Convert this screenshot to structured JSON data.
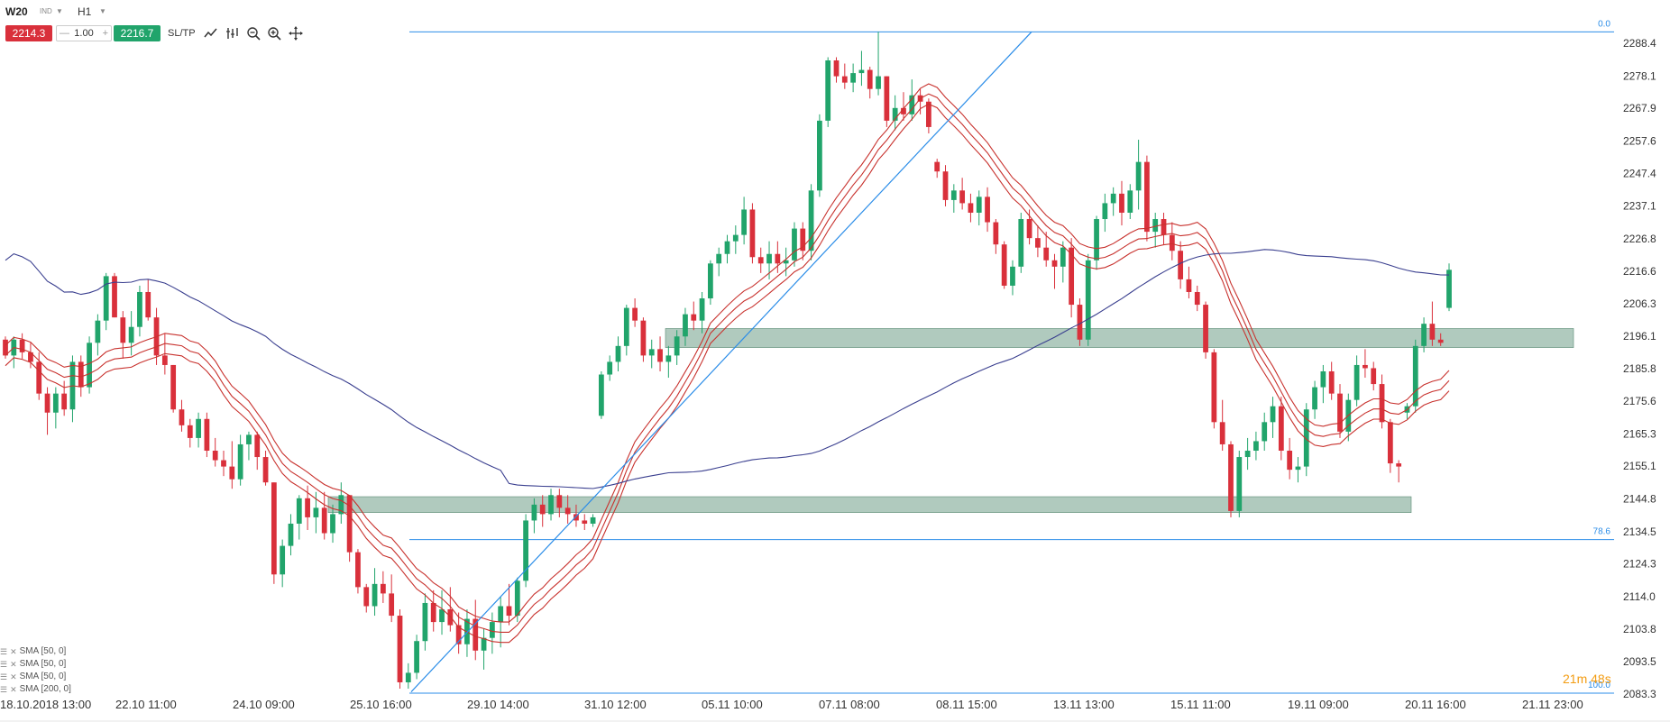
{
  "toolbar": {
    "symbol": "W20",
    "type": "IND",
    "timeframe": "H1",
    "sell_price": "2214.3",
    "quantity": "1.00",
    "buy_price": "2216.7",
    "sltp": "SL/TP",
    "icons": [
      "chart-type-icon",
      "indicators-icon",
      "zoom-out-icon",
      "zoom-in-icon",
      "crosshair-icon"
    ]
  },
  "indicators": [
    {
      "label": "SMA [50, 0]"
    },
    {
      "label": "SMA [50, 0]"
    },
    {
      "label": "SMA [50, 0]"
    },
    {
      "label": "SMA [200, 0]"
    }
  ],
  "colors": {
    "bull": "#21a46b",
    "bear": "#d9303b",
    "sma50": "#c8322e",
    "sma200": "#3a3f8f",
    "fib": "#2b8de8",
    "zone": "#6f9f88",
    "grid_text": "#333333"
  },
  "chart_data": {
    "type": "candlestick",
    "title": "",
    "y_ticks": [
      "2288.4",
      "2278.1",
      "2267.9",
      "2257.6",
      "2247.4",
      "2237.1",
      "2226.8",
      "2216.6",
      "2206.3",
      "2196.1",
      "2185.8",
      "2175.6",
      "2165.3",
      "2155.1",
      "2144.8",
      "2134.5",
      "2124.3",
      "2114.0",
      "2103.8",
      "2093.5",
      "2083.3"
    ],
    "ylim": [
      2083.3,
      2293.0
    ],
    "x_ticks": [
      "18.10.2018 13:00",
      "22.10 11:00",
      "24.10 09:00",
      "25.10 16:00",
      "29.10 14:00",
      "31.10 12:00",
      "05.11 10:00",
      "07.11 08:00",
      "08.11 15:00",
      "13.11 13:00",
      "15.11 11:00",
      "19.11 09:00",
      "20.11 16:00",
      "21.11 23:00"
    ],
    "fib_levels": [
      {
        "label": "0.0",
        "value": 2292.0
      },
      {
        "label": "78.6",
        "value": 2132.0
      },
      {
        "label": "100.0",
        "value": 2083.6
      }
    ],
    "zones": [
      {
        "low": 2192.5,
        "high": 2198.5
      },
      {
        "low": 2140.5,
        "high": 2145.5
      }
    ],
    "trendline": {
      "from_value": 2084.0,
      "to_value": 2292.0
    },
    "timer_label": "21m 48s",
    "candles_ohlc": [
      [
        2195,
        2196,
        2189,
        2190
      ],
      [
        2190,
        2196,
        2186,
        2195
      ],
      [
        2195,
        2197,
        2189,
        2191
      ],
      [
        2191,
        2194,
        2186,
        2188
      ],
      [
        2188,
        2191,
        2176,
        2178
      ],
      [
        2178,
        2180,
        2165,
        2172
      ],
      [
        2172,
        2180,
        2167,
        2178
      ],
      [
        2178,
        2182,
        2171,
        2173
      ],
      [
        2173,
        2190,
        2169,
        2188
      ],
      [
        2188,
        2190,
        2177,
        2180
      ],
      [
        2180,
        2196,
        2178,
        2194
      ],
      [
        2194,
        2203,
        2190,
        2201
      ],
      [
        2201,
        2216,
        2198,
        2215
      ],
      [
        2215,
        2216,
        2202,
        2202
      ],
      [
        2202,
        2204,
        2189,
        2194
      ],
      [
        2194,
        2204,
        2190,
        2199
      ],
      [
        2199,
        2212,
        2196,
        2210
      ],
      [
        2210,
        2214,
        2201,
        2202
      ],
      [
        2202,
        2205,
        2187,
        2190
      ],
      [
        2190,
        2197,
        2184,
        2187
      ],
      [
        2187,
        2187,
        2172,
        2173
      ],
      [
        2173,
        2176,
        2166,
        2168
      ],
      [
        2168,
        2170,
        2161,
        2164
      ],
      [
        2164,
        2172,
        2161,
        2170
      ],
      [
        2170,
        2172,
        2158,
        2160
      ],
      [
        2160,
        2164,
        2155,
        2157
      ],
      [
        2157,
        2160,
        2152,
        2155
      ],
      [
        2155,
        2163,
        2148,
        2151
      ],
      [
        2151,
        2165,
        2149,
        2162
      ],
      [
        2162,
        2166,
        2157,
        2165
      ],
      [
        2165,
        2166,
        2154,
        2158
      ],
      [
        2158,
        2160,
        2149,
        2150
      ],
      [
        2150,
        2150,
        2118,
        2121
      ],
      [
        2121,
        2132,
        2117,
        2130
      ],
      [
        2130,
        2140,
        2127,
        2137
      ],
      [
        2137,
        2146,
        2132,
        2145
      ],
      [
        2145,
        2149,
        2135,
        2139
      ],
      [
        2139,
        2147,
        2134,
        2142
      ],
      [
        2142,
        2147,
        2132,
        2134
      ],
      [
        2134,
        2143,
        2131,
        2140
      ],
      [
        2140,
        2150,
        2137,
        2146
      ],
      [
        2146,
        2146,
        2125,
        2128
      ],
      [
        2128,
        2129,
        2115,
        2117
      ],
      [
        2117,
        2118,
        2109,
        2111
      ],
      [
        2111,
        2123,
        2108,
        2118
      ],
      [
        2118,
        2122,
        2112,
        2115
      ],
      [
        2115,
        2121,
        2106,
        2108
      ],
      [
        2108,
        2110,
        2085,
        2087
      ],
      [
        2087,
        2093,
        2085,
        2090
      ],
      [
        2090,
        2102,
        2088,
        2100
      ],
      [
        2100,
        2115,
        2097,
        2112
      ],
      [
        2112,
        2116,
        2103,
        2106
      ],
      [
        2106,
        2116,
        2102,
        2110
      ],
      [
        2110,
        2117,
        2103,
        2105
      ],
      [
        2105,
        2109,
        2096,
        2099
      ],
      [
        2099,
        2110,
        2095,
        2107
      ],
      [
        2107,
        2113,
        2094,
        2097
      ],
      [
        2097,
        2104,
        2091,
        2101
      ],
      [
        2101,
        2109,
        2096,
        2106
      ],
      [
        2106,
        2114,
        2098,
        2111
      ],
      [
        2111,
        2118,
        2105,
        2108
      ],
      [
        2108,
        2120,
        2106,
        2119
      ],
      [
        2119,
        2140,
        2117,
        2138
      ],
      [
        2138,
        2145,
        2134,
        2143
      ],
      [
        2143,
        2146,
        2136,
        2140
      ],
      [
        2140,
        2148,
        2138,
        2146
      ],
      [
        2146,
        2148,
        2139,
        2142
      ],
      [
        2142,
        2146,
        2137,
        2140
      ],
      [
        2140,
        2143,
        2136,
        2138
      ],
      [
        2138,
        2140,
        2135,
        2137
      ],
      [
        2137,
        2140,
        2136,
        2139
      ],
      [
        2171,
        2185,
        2170,
        2184
      ],
      [
        2184,
        2190,
        2182,
        2188
      ],
      [
        2188,
        2196,
        2185,
        2193
      ],
      [
        2193,
        2206,
        2190,
        2205
      ],
      [
        2205,
        2208,
        2199,
        2201
      ],
      [
        2201,
        2202,
        2188,
        2190
      ],
      [
        2190,
        2195,
        2186,
        2192
      ],
      [
        2192,
        2196,
        2185,
        2188
      ],
      [
        2188,
        2193,
        2183,
        2190
      ],
      [
        2190,
        2198,
        2187,
        2196
      ],
      [
        2196,
        2205,
        2193,
        2203
      ],
      [
        2203,
        2207,
        2198,
        2201
      ],
      [
        2201,
        2210,
        2197,
        2208
      ],
      [
        2208,
        2220,
        2206,
        2219
      ],
      [
        2219,
        2224,
        2215,
        2222
      ],
      [
        2222,
        2228,
        2219,
        2226
      ],
      [
        2226,
        2231,
        2222,
        2228
      ],
      [
        2228,
        2240,
        2225,
        2236
      ],
      [
        2236,
        2238,
        2219,
        2221
      ],
      [
        2221,
        2224,
        2216,
        2219
      ],
      [
        2219,
        2226,
        2214,
        2222
      ],
      [
        2222,
        2226,
        2216,
        2219
      ],
      [
        2219,
        2224,
        2215,
        2220
      ],
      [
        2220,
        2232,
        2218,
        2230
      ],
      [
        2230,
        2232,
        2220,
        2223
      ],
      [
        2223,
        2244,
        2220,
        2242
      ],
      [
        2242,
        2266,
        2240,
        2264
      ],
      [
        2264,
        2284,
        2262,
        2283
      ],
      [
        2283,
        2284,
        2276,
        2278
      ],
      [
        2278,
        2282,
        2274,
        2276
      ],
      [
        2276,
        2282,
        2273,
        2279
      ],
      [
        2279,
        2286,
        2275,
        2280
      ],
      [
        2280,
        2281,
        2271,
        2274
      ],
      [
        2274,
        2292,
        2272,
        2278
      ],
      [
        2278,
        2278,
        2262,
        2264
      ],
      [
        2264,
        2272,
        2261,
        2268
      ],
      [
        2268,
        2273,
        2264,
        2266
      ],
      [
        2266,
        2277,
        2264,
        2272
      ],
      [
        2272,
        2274,
        2266,
        2270
      ],
      [
        2270,
        2271,
        2260,
        2262
      ],
      [
        2251,
        2252,
        2246,
        2248
      ],
      [
        2248,
        2250,
        2237,
        2239
      ],
      [
        2239,
        2244,
        2235,
        2242
      ],
      [
        2242,
        2246,
        2236,
        2238
      ],
      [
        2238,
        2241,
        2232,
        2235
      ],
      [
        2235,
        2242,
        2231,
        2240
      ],
      [
        2240,
        2243,
        2229,
        2232
      ],
      [
        2232,
        2233,
        2222,
        2225
      ],
      [
        2225,
        2226,
        2211,
        2212
      ],
      [
        2212,
        2220,
        2209,
        2218
      ],
      [
        2218,
        2235,
        2216,
        2233
      ],
      [
        2233,
        2236,
        2225,
        2227
      ],
      [
        2227,
        2231,
        2221,
        2224
      ],
      [
        2224,
        2229,
        2218,
        2220
      ],
      [
        2220,
        2222,
        2211,
        2218
      ],
      [
        2218,
        2226,
        2213,
        2224
      ],
      [
        2224,
        2227,
        2202,
        2206
      ],
      [
        2206,
        2208,
        2193,
        2195
      ],
      [
        2195,
        2222,
        2193,
        2220
      ],
      [
        2220,
        2234,
        2217,
        2233
      ],
      [
        2233,
        2241,
        2229,
        2238
      ],
      [
        2238,
        2243,
        2234,
        2241
      ],
      [
        2241,
        2245,
        2231,
        2235
      ],
      [
        2235,
        2244,
        2233,
        2242
      ],
      [
        2242,
        2258,
        2236,
        2251
      ],
      [
        2251,
        2253,
        2226,
        2229
      ],
      [
        2229,
        2235,
        2224,
        2233
      ],
      [
        2233,
        2235,
        2225,
        2228
      ],
      [
        2228,
        2232,
        2220,
        2223
      ],
      [
        2223,
        2226,
        2211,
        2214
      ],
      [
        2214,
        2218,
        2208,
        2210
      ],
      [
        2210,
        2212,
        2204,
        2206
      ],
      [
        2206,
        2207,
        2189,
        2191
      ],
      [
        2191,
        2192,
        2167,
        2169
      ],
      [
        2169,
        2176,
        2160,
        2162
      ],
      [
        2162,
        2163,
        2139,
        2141
      ],
      [
        2141,
        2160,
        2139,
        2158
      ],
      [
        2158,
        2164,
        2154,
        2160
      ],
      [
        2160,
        2166,
        2157,
        2163
      ],
      [
        2163,
        2172,
        2160,
        2169
      ],
      [
        2169,
        2177,
        2164,
        2174
      ],
      [
        2174,
        2177,
        2157,
        2160
      ],
      [
        2160,
        2164,
        2151,
        2154
      ],
      [
        2154,
        2158,
        2150,
        2155
      ],
      [
        2155,
        2175,
        2152,
        2173
      ],
      [
        2173,
        2182,
        2170,
        2180
      ],
      [
        2180,
        2187,
        2175,
        2185
      ],
      [
        2185,
        2188,
        2176,
        2178
      ],
      [
        2178,
        2181,
        2164,
        2166
      ],
      [
        2166,
        2178,
        2163,
        2176
      ],
      [
        2176,
        2190,
        2174,
        2187
      ],
      [
        2187,
        2192,
        2183,
        2186
      ],
      [
        2186,
        2188,
        2179,
        2181
      ],
      [
        2181,
        2184,
        2167,
        2169
      ],
      [
        2169,
        2170,
        2153,
        2156
      ],
      [
        2156,
        2157,
        2150,
        2155
      ],
      [
        2172,
        2175,
        2170,
        2174
      ],
      [
        2174,
        2195,
        2172,
        2193
      ],
      [
        2193,
        2202,
        2191,
        2200
      ],
      [
        2200,
        2207,
        2193,
        2195
      ],
      [
        2195,
        2197,
        2193,
        2194
      ],
      [
        2205,
        2219,
        2204,
        2217
      ]
    ]
  }
}
